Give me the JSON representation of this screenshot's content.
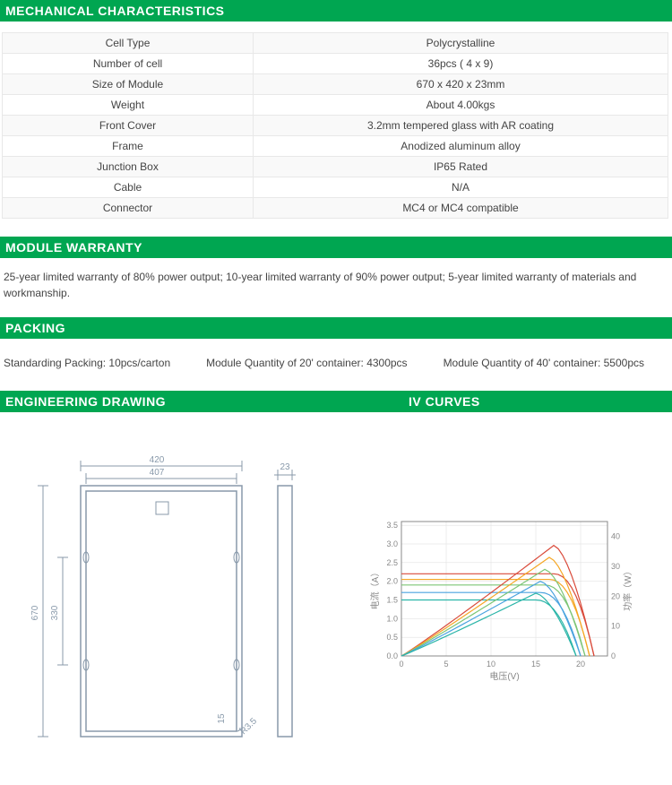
{
  "headers": {
    "mechanical": "MECHANICAL  CHARACTERISTICS",
    "warranty": "MODULE WARRANTY",
    "packing": "PACKING",
    "drawing": "ENGINEERING DRAWING",
    "iv": "IV CURVES"
  },
  "mech_rows": [
    {
      "label": "Cell Type",
      "value": "Polycrystalline"
    },
    {
      "label": "Number of cell",
      "value": "36pcs ( 4 x 9)"
    },
    {
      "label": "Size of Module",
      "value": "670 x 420 x 23mm"
    },
    {
      "label": "Weight",
      "value": "About 4.00kgs"
    },
    {
      "label": "Front Cover",
      "value": "3.2mm tempered glass with AR coating"
    },
    {
      "label": "Frame",
      "value": "Anodized aluminum alloy"
    },
    {
      "label": "Junction Box",
      "value": "IP65 Rated"
    },
    {
      "label": "Cable",
      "value": "N/A"
    },
    {
      "label": "Connector",
      "value": "MC4 or MC4 compatible"
    }
  ],
  "warranty_text": "25-year limited warranty of 80% power output; 10-year limited warranty of 90% power output; 5-year limited warranty of materials and workmanship.",
  "packing": {
    "std": "Standarding Packing: 10pcs/carton",
    "c20": "Module Quantity of 20' container: 4300pcs",
    "c40": "Module Quantity of 40' container: 5500pcs"
  },
  "drawing": {
    "outer_w": "420",
    "inner_w": "407",
    "side_w": "23",
    "outer_h": "670",
    "inner_h": "330",
    "radius": "R3.5",
    "small": "15",
    "colors": {
      "line": "#8899aa",
      "text": "#8899aa"
    }
  },
  "chart": {
    "type": "line",
    "xlabel": "电压(V)",
    "ylabel_left": "电流（A）",
    "ylabel_right": "功率（W）",
    "xlim": [
      0,
      23
    ],
    "ylim_left": [
      0,
      3.6
    ],
    "ylim_right": [
      0,
      45
    ],
    "xticks": [
      0,
      5,
      10,
      15,
      20
    ],
    "yticks_left": [
      0,
      0.5,
      1.0,
      1.5,
      2.0,
      2.5,
      3.0,
      3.5
    ],
    "yticks_right": [
      0,
      10,
      20,
      30,
      40
    ],
    "background_color": "#ffffff",
    "grid_color": "#dddddd",
    "curves": [
      {
        "name": "I-red",
        "color": "#d94a3a",
        "type": "iv",
        "isc": 2.2,
        "voc": 21.5,
        "knee": 17
      },
      {
        "name": "I-orange",
        "color": "#f5a623",
        "type": "iv",
        "isc": 2.05,
        "voc": 21.0,
        "knee": 16.5
      },
      {
        "name": "I-green",
        "color": "#7cc576",
        "type": "iv",
        "isc": 1.9,
        "voc": 20.5,
        "knee": 16
      },
      {
        "name": "I-blue",
        "color": "#4aa3df",
        "type": "iv",
        "isc": 1.7,
        "voc": 20.0,
        "knee": 15.5
      },
      {
        "name": "I-teal",
        "color": "#2bb5a8",
        "type": "iv",
        "isc": 1.5,
        "voc": 19.5,
        "knee": 15
      },
      {
        "name": "P-red",
        "color": "#d94a3a",
        "type": "pv",
        "pmax": 37,
        "vmp": 17,
        "voc": 21.5
      },
      {
        "name": "P-orange",
        "color": "#f5a623",
        "type": "pv",
        "pmax": 33,
        "vmp": 16.5,
        "voc": 21.0
      },
      {
        "name": "P-green",
        "color": "#7cc576",
        "type": "pv",
        "pmax": 29,
        "vmp": 16,
        "voc": 20.5
      },
      {
        "name": "P-blue",
        "color": "#4aa3df",
        "type": "pv",
        "pmax": 25,
        "vmp": 15.5,
        "voc": 20.0
      },
      {
        "name": "P-teal",
        "color": "#2bb5a8",
        "type": "pv",
        "pmax": 21,
        "vmp": 15,
        "voc": 19.5
      }
    ]
  }
}
